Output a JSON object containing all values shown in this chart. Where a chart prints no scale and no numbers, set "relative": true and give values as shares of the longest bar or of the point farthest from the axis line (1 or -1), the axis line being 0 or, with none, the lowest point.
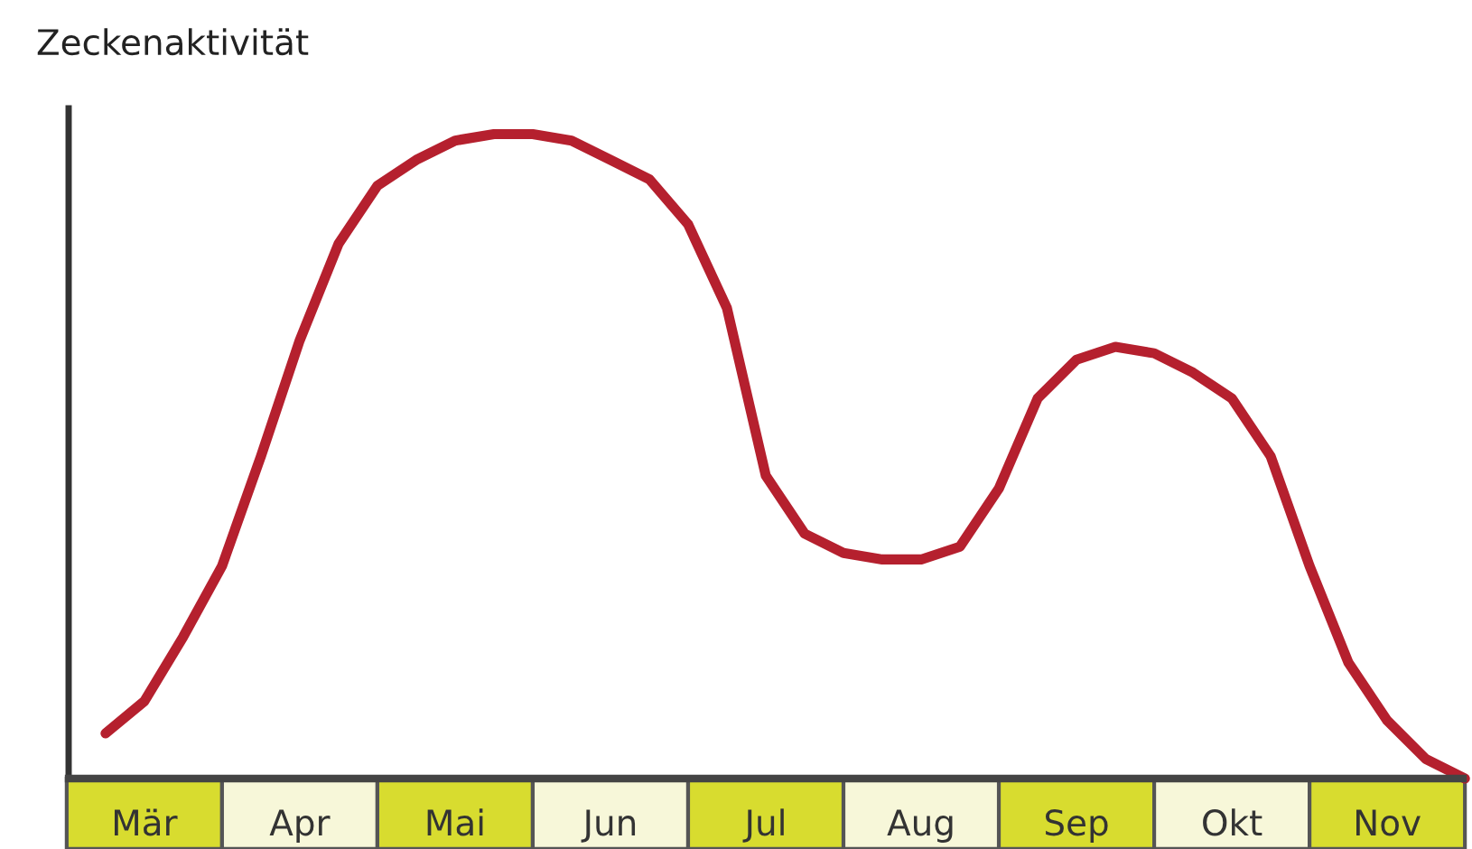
{
  "chart_data": {
    "type": "line",
    "ylabel": "Zeckenaktivität",
    "relative": true,
    "categories": [
      null,
      null,
      "Mär",
      null,
      null,
      null,
      "Apr",
      null,
      null,
      null,
      "Mai",
      null,
      null,
      null,
      "Jun",
      null,
      null,
      null,
      "Jul",
      null,
      null,
      null,
      "Aug",
      null,
      null,
      null,
      "Sep",
      null,
      null,
      null,
      "Okt",
      null,
      null,
      null,
      "Nov",
      null,
      null
    ],
    "series": [
      {
        "color": "#b5202e",
        "values": [
          null,
          0.07,
          0.12,
          0.22,
          0.33,
          0.5,
          0.68,
          0.83,
          0.92,
          0.96,
          0.99,
          1.0,
          1.0,
          0.99,
          0.96,
          0.93,
          0.86,
          0.73,
          0.47,
          0.38,
          0.35,
          0.34,
          0.34,
          0.36,
          0.45,
          0.59,
          0.65,
          0.67,
          0.66,
          0.63,
          0.59,
          0.5,
          0.33,
          0.18,
          0.09,
          0.03,
          0.0
        ]
      }
    ],
    "grid": false,
    "legend": false,
    "marker": "none",
    "line_style": "solid"
  }
}
